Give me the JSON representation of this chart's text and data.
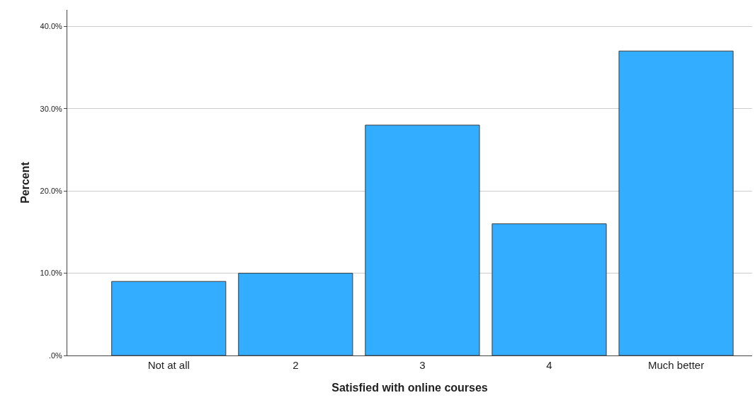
{
  "chart_data": {
    "type": "bar",
    "xlabel": "Satisfied with online courses",
    "ylabel": "Percent",
    "categories": [
      "Not at all",
      "2",
      "3",
      "4",
      "Much better"
    ],
    "values": [
      9,
      10,
      28,
      16,
      37
    ],
    "color": "#33adff",
    "ylim": [
      0,
      42
    ],
    "yticks": [
      {
        "value": 0,
        "label": ".0%"
      },
      {
        "value": 10,
        "label": "10.0%"
      },
      {
        "value": 20,
        "label": "20.0%"
      },
      {
        "value": 30,
        "label": "30.0%"
      },
      {
        "value": 40,
        "label": "40.0%"
      }
    ],
    "grid": "y"
  }
}
